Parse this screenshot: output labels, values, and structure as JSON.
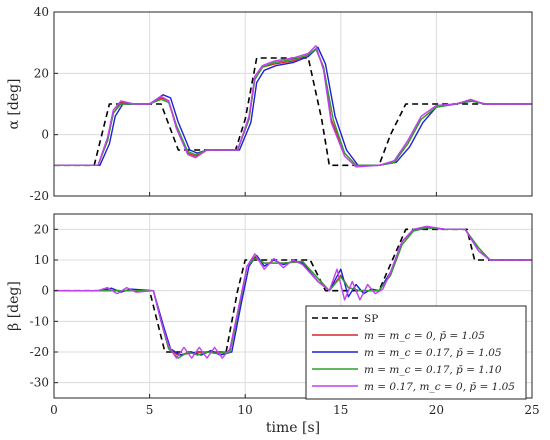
{
  "chart_data": [
    {
      "type": "line",
      "ylabel": "α [deg]",
      "xlim": [
        0,
        25
      ],
      "ylim": [
        -20,
        40
      ],
      "xticks": [
        0,
        5,
        10,
        15,
        20,
        25
      ],
      "xtick_labels": [
        "",
        "",
        "",
        "",
        "",
        ""
      ],
      "yticks": [
        -20,
        0,
        20,
        40
      ],
      "ytick_labels": [
        "-20",
        "0",
        "20",
        "40"
      ],
      "grid": true,
      "series": [
        {
          "name": "SP",
          "color": "#000000",
          "dash": true,
          "x": [
            0,
            2.1,
            2.9,
            5.0,
            5.6,
            6.5,
            9.5,
            10.0,
            10.6,
            13.3,
            14.0,
            14.4,
            17.0,
            17.6,
            18.4,
            25
          ],
          "y": [
            -10,
            -10,
            10,
            10,
            10,
            -5,
            -5,
            5,
            25,
            25,
            5,
            -10,
            -10,
            0,
            10,
            10
          ]
        },
        {
          "name": "m = m_c = 0, p̄ = 1.05",
          "color": "#d62728",
          "x": [
            0,
            2.3,
            2.8,
            3.1,
            3.5,
            4.2,
            5.0,
            5.6,
            6.0,
            6.4,
            7.0,
            7.4,
            8.0,
            9.6,
            10.2,
            10.5,
            10.9,
            11.5,
            12.5,
            13.3,
            13.7,
            14.1,
            14.5,
            15.2,
            15.8,
            17.0,
            17.8,
            18.5,
            19.2,
            20,
            21,
            21.8,
            22.5,
            25
          ],
          "y": [
            -10,
            -10,
            -2,
            7,
            10.5,
            10,
            10,
            12,
            11,
            3,
            -6,
            -7,
            -5,
            -5,
            5,
            18,
            22,
            23,
            24,
            26,
            28,
            22,
            5,
            -6,
            -10,
            -10,
            -9,
            -3,
            5,
            9,
            10,
            11,
            10,
            10
          ]
        },
        {
          "name": "m = m_c = 0.17, p̄ = 1.05",
          "color": "#1f1fd6",
          "x": [
            0,
            2.4,
            2.9,
            3.2,
            3.6,
            4.2,
            5.0,
            5.7,
            6.1,
            6.5,
            7.1,
            7.5,
            8.0,
            9.7,
            10.3,
            10.6,
            11.0,
            11.6,
            12.5,
            13.3,
            13.8,
            14.2,
            14.7,
            15.3,
            15.9,
            17.0,
            17.9,
            18.6,
            19.3,
            20,
            21,
            21.9,
            22.6,
            25
          ],
          "y": [
            -10,
            -10,
            -3,
            6,
            10,
            10,
            10,
            13,
            12,
            4,
            -5,
            -6,
            -5,
            -5,
            4,
            17,
            21,
            22.5,
            23.5,
            25.5,
            28.5,
            23,
            6,
            -5,
            -10,
            -10,
            -9,
            -4,
            4,
            9,
            10,
            11,
            10,
            10
          ]
        },
        {
          "name": "m = m_c = 0.17, p̄ = 1.10",
          "color": "#2ca02c",
          "x": [
            0,
            2.3,
            2.8,
            3.1,
            3.5,
            4.2,
            5.0,
            5.6,
            6.0,
            6.4,
            7.0,
            7.4,
            8.0,
            9.6,
            10.2,
            10.5,
            10.9,
            11.5,
            12.5,
            13.3,
            13.7,
            14.1,
            14.6,
            15.2,
            15.8,
            17.0,
            17.8,
            18.5,
            19.2,
            20,
            21,
            21.8,
            22.5,
            25
          ],
          "y": [
            -10,
            -10,
            -2,
            7,
            10,
            10,
            10,
            11.5,
            10.5,
            3,
            -5.5,
            -6.5,
            -5,
            -5,
            5,
            18,
            22,
            23.5,
            24.5,
            26,
            28,
            22,
            5,
            -6,
            -10,
            -10,
            -9,
            -3,
            5,
            9,
            10,
            11,
            10,
            10
          ]
        },
        {
          "name": "m = 0.17, m_c = 0, p̄ = 1.05",
          "color": "#c040f0",
          "x": [
            0,
            2.3,
            2.8,
            3.1,
            3.5,
            4.2,
            5.0,
            5.6,
            6.0,
            6.4,
            7.0,
            7.4,
            8.0,
            9.6,
            10.2,
            10.5,
            10.9,
            11.5,
            12.5,
            13.3,
            13.7,
            14.1,
            14.5,
            15.2,
            15.8,
            17.0,
            17.8,
            18.5,
            19.2,
            20,
            21,
            21.8,
            22.5,
            25
          ],
          "y": [
            -10,
            -10,
            -1,
            8,
            11,
            10,
            10,
            12.5,
            11,
            2,
            -6.5,
            -7.5,
            -5,
            -5,
            6,
            19,
            22.5,
            24,
            25,
            26.5,
            29,
            21,
            4,
            -7,
            -10.5,
            -10,
            -8.5,
            -2,
            6,
            9.5,
            10,
            11.5,
            10,
            10
          ]
        }
      ]
    },
    {
      "type": "line",
      "xlabel": "time [s]",
      "ylabel": "β [deg]",
      "xlim": [
        0,
        25
      ],
      "ylim": [
        -35,
        25
      ],
      "xticks": [
        0,
        5,
        10,
        15,
        20,
        25
      ],
      "xtick_labels": [
        "0",
        "5",
        "10",
        "15",
        "20",
        "25"
      ],
      "yticks": [
        -30,
        -20,
        -10,
        0,
        10,
        20
      ],
      "ytick_labels": [
        "-30",
        "-20",
        "-10",
        "0",
        "10",
        "20"
      ],
      "grid": true,
      "legend": {
        "position": "bottom-right"
      },
      "series": [
        {
          "name": "SP",
          "color": "#000000",
          "dash": true,
          "x": [
            0,
            5.0,
            5.8,
            6.0,
            9.0,
            9.6,
            10.0,
            13.0,
            13.4,
            14.2,
            16.6,
            17.0,
            18.4,
            18.8,
            21.6,
            22.0,
            25
          ],
          "y": [
            0,
            0,
            -20,
            -20,
            -20,
            0,
            10,
            10,
            10,
            0,
            0,
            0,
            20,
            20,
            20,
            10,
            10
          ]
        },
        {
          "name": "m = m_c = 0, p̄ = 1.05",
          "color": "#d62728",
          "x": [
            0,
            5.2,
            5.6,
            6.0,
            6.5,
            7.5,
            8.5,
            9.2,
            9.7,
            10.1,
            10.5,
            11.0,
            12.0,
            13.0,
            13.8,
            14.4,
            15.0,
            15.4,
            16.0,
            17.0,
            17.6,
            18.2,
            18.8,
            19.5,
            20.5,
            21.5,
            22.2,
            22.8,
            25
          ],
          "y": [
            0,
            0,
            -10,
            -19,
            -21,
            -20,
            -20,
            -20,
            -5,
            8,
            11,
            9,
            9,
            9.5,
            4,
            0,
            5,
            1,
            0,
            0,
            5,
            15,
            19.5,
            20.5,
            20,
            20,
            14,
            10,
            10
          ]
        },
        {
          "name": "m = m_c = 0.17, p̄ = 1.05",
          "color": "#1f1fd6",
          "x": [
            0,
            2.5,
            3.0,
            3.5,
            4.0,
            5.2,
            5.7,
            6.1,
            6.6,
            7.2,
            7.7,
            8.2,
            8.7,
            9.3,
            9.8,
            10.2,
            10.6,
            11.0,
            11.5,
            12.0,
            12.5,
            13.0,
            13.8,
            14.4,
            15.0,
            15.4,
            15.8,
            16.2,
            16.6,
            17.0,
            17.6,
            18.2,
            18.8,
            19.5,
            20.5,
            21.5,
            22.2,
            22.8,
            25
          ],
          "y": [
            0,
            0,
            0.8,
            -0.5,
            0.5,
            0,
            -11,
            -19,
            -21,
            -20,
            -21,
            -19.5,
            -21,
            -20,
            -4,
            8,
            11.5,
            8,
            10,
            8.5,
            9.5,
            9,
            3,
            0,
            7,
            -2,
            2,
            -1,
            0.5,
            0,
            6,
            16,
            20,
            20.5,
            20,
            20,
            13,
            10,
            10
          ]
        },
        {
          "name": "m = m_c = 0.17, p̄ = 1.10",
          "color": "#2ca02c",
          "x": [
            0,
            5.2,
            5.6,
            6.0,
            6.5,
            7.0,
            7.5,
            8.0,
            8.5,
            9.2,
            9.7,
            10.1,
            10.5,
            11.0,
            12.0,
            13.0,
            13.8,
            14.4,
            15.0,
            15.4,
            16.0,
            17.0,
            17.6,
            18.2,
            18.8,
            19.5,
            20.5,
            21.5,
            22.2,
            22.8,
            25
          ],
          "y": [
            0,
            0,
            -10,
            -19,
            -22,
            -20,
            -21,
            -20,
            -20.5,
            -20,
            -5,
            8,
            10.5,
            9,
            9,
            9.5,
            4,
            0,
            4.5,
            1,
            0,
            0,
            5,
            15,
            19.5,
            20.5,
            20,
            20,
            14,
            10,
            10
          ]
        },
        {
          "name": "m = 0.17, m_c = 0, p̄ = 1.05",
          "color": "#c040f0",
          "x": [
            0,
            2.3,
            2.8,
            3.3,
            3.8,
            4.3,
            5.2,
            5.6,
            6.0,
            6.4,
            6.8,
            7.2,
            7.6,
            8.0,
            8.4,
            8.8,
            9.2,
            9.7,
            10.1,
            10.5,
            11.0,
            11.5,
            12.0,
            12.5,
            13.0,
            13.8,
            14.4,
            14.8,
            15.2,
            15.6,
            16.0,
            16.4,
            16.8,
            17.2,
            17.6,
            18.2,
            18.8,
            19.5,
            20.5,
            21.5,
            22.2,
            22.8,
            25
          ],
          "y": [
            0,
            0,
            1,
            -1,
            1,
            -0.5,
            0,
            -10,
            -18,
            -22,
            -18.5,
            -22,
            -18.5,
            -22,
            -18.5,
            -22,
            -19,
            -4,
            8,
            12,
            7,
            10.5,
            7.5,
            10,
            8.5,
            3,
            0,
            7,
            -3,
            3,
            -3,
            2,
            -1,
            0.5,
            6,
            16,
            20,
            21,
            20,
            20,
            13,
            10,
            10
          ]
        }
      ]
    }
  ],
  "legend_labels": [
    "SP",
    "m = m_c = 0, p̄ = 1.05",
    "m = m_c = 0.17, p̄ = 1.05",
    "m = m_c = 0.17, p̄ = 1.10",
    "m = 0.17, m_c = 0, p̄ = 1.05"
  ]
}
